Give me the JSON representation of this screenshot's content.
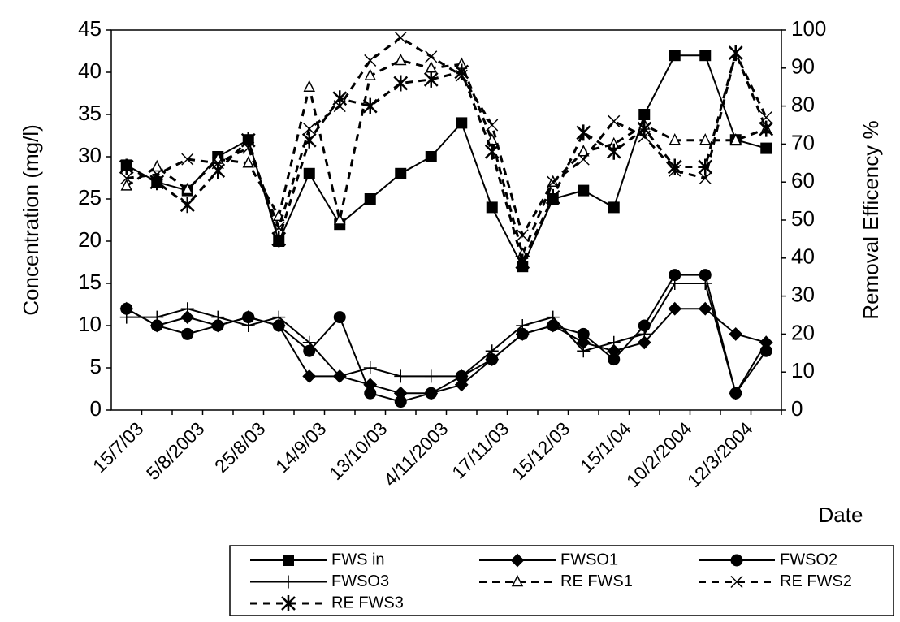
{
  "chart_data": {
    "type": "line",
    "y_label": "Concentration (mg/l)",
    "y2_label": "Removal Efficency %",
    "x_label": "Date",
    "categories": [
      "15/7/03",
      null,
      "5/8/2003",
      null,
      "25/8/03",
      null,
      "14/9/03",
      null,
      "13/10/03",
      null,
      "4/11/2003",
      null,
      "17/11/03",
      null,
      "15/12/03",
      null,
      "15/1/04",
      null,
      "10/2/2004",
      null,
      "12/3/2004",
      null
    ],
    "ylim": [
      0,
      45
    ],
    "yticks": [
      0,
      5,
      10,
      15,
      20,
      25,
      30,
      35,
      40,
      45
    ],
    "y2lim": [
      0,
      100
    ],
    "y2ticks": [
      0,
      10,
      20,
      30,
      40,
      50,
      60,
      70,
      80,
      90,
      100
    ],
    "series": [
      {
        "name": "FWS in",
        "color": "#000000",
        "marker": "square",
        "dashed": false,
        "values": [
          29,
          27,
          26,
          30,
          32,
          20,
          28,
          22,
          25,
          28,
          30,
          34,
          24,
          17,
          25,
          26,
          24,
          35,
          42,
          42,
          32,
          31
        ]
      },
      {
        "name": "FWSO1",
        "color": "#000000",
        "marker": "diamond",
        "dashed": false,
        "values": [
          12,
          10,
          11,
          10,
          11,
          10,
          4,
          4,
          3,
          2,
          2,
          3,
          6,
          9,
          10,
          8,
          7,
          8,
          12,
          12,
          9,
          8
        ]
      },
      {
        "name": "FWSO2",
        "color": "#000000",
        "marker": "circle",
        "dashed": false,
        "values": [
          12,
          10,
          9,
          10,
          11,
          10,
          7,
          11,
          2,
          1,
          2,
          4,
          6,
          9,
          10,
          9,
          6,
          10,
          16,
          16,
          2,
          7
        ]
      },
      {
        "name": "FWSO3",
        "color": "#000000",
        "marker": "plus",
        "dashed": false,
        "values": [
          11,
          11,
          12,
          11,
          10,
          11,
          8,
          4,
          5,
          4,
          4,
          4,
          7,
          10,
          11,
          7,
          8,
          9,
          15,
          15,
          2,
          8
        ]
      },
      {
        "name": "RE FWS1",
        "color": "#000000",
        "marker": "triangle",
        "dashed": true,
        "axis": "y2",
        "values": [
          59,
          64,
          58,
          66,
          65,
          51,
          85,
          50,
          88,
          92,
          90,
          91,
          71,
          41,
          60,
          68,
          70,
          75,
          71,
          71,
          71,
          74
        ]
      },
      {
        "name": "RE FWS2",
        "color": "#000000",
        "marker": "x",
        "dashed": true,
        "axis": "y2",
        "values": [
          61,
          62,
          66,
          65,
          69,
          48,
          74,
          80,
          92,
          98,
          93,
          88,
          75,
          46,
          60,
          66,
          76,
          72,
          63,
          61,
          94,
          77
        ]
      },
      {
        "name": "RE FWS3",
        "color": "#000000",
        "marker": "asterisk",
        "dashed": true,
        "axis": "y2",
        "values": [
          64,
          60,
          54,
          63,
          71,
          45,
          71,
          82,
          80,
          86,
          87,
          89,
          68,
          39,
          56,
          73,
          68,
          74,
          64,
          64,
          94,
          74
        ]
      }
    ]
  }
}
